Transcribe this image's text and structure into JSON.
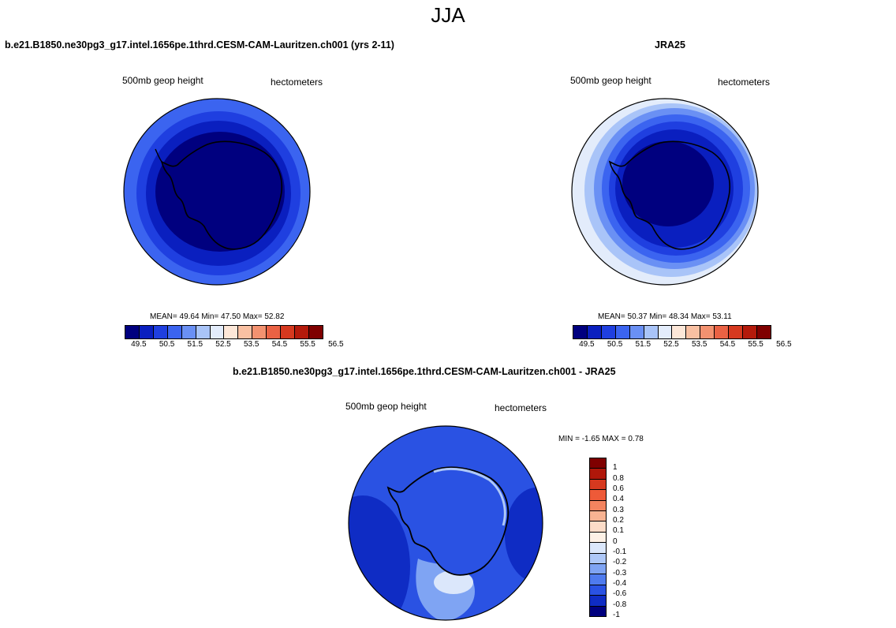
{
  "figure": {
    "title": "JJA"
  },
  "panels": {
    "model": {
      "title": "b.e21.B1850.ne30pg3_g17.intel.1656pe.1thrd.CESM-CAM-Lauritzen.ch001 (yrs 2-11)",
      "variable": "500mb geop height",
      "units": "hectometers",
      "stats": "MEAN=  49.64  Min=  47.50  Max=  52.82",
      "colorbar_labels": [
        "49.5",
        "50.5",
        "51.5",
        "52.5",
        "53.5",
        "54.5",
        "55.5",
        "56.5"
      ]
    },
    "obs": {
      "title": "JRA25",
      "variable": "500mb geop height",
      "units": "hectometers",
      "stats": "MEAN=  50.37  Min=  48.34  Max=  53.11",
      "colorbar_labels": [
        "49.5",
        "50.5",
        "51.5",
        "52.5",
        "53.5",
        "54.5",
        "55.5",
        "56.5"
      ]
    },
    "diff": {
      "title": "b.e21.B1850.ne30pg3_g17.intel.1656pe.1thrd.CESM-CAM-Lauritzen.ch001 - JRA25",
      "variable": "500mb geop height",
      "units": "hectometers",
      "stats": "MIN =  -1.65 MAX =   0.78",
      "colorbar_labels": [
        "1",
        "0.8",
        "0.6",
        "0.4",
        "0.3",
        "0.2",
        "0.1",
        "0",
        "-0.1",
        "-0.2",
        "-0.3",
        "-0.4",
        "-0.6",
        "-0.8",
        "-1"
      ]
    }
  },
  "colors": {
    "abs_scale": [
      "#00007f",
      "#0a1fbf",
      "#1f3fe0",
      "#3b64f0",
      "#6a90f4",
      "#a9c4f8",
      "#e3ecfb",
      "#fde7d8",
      "#f9c0a2",
      "#f39270",
      "#ea6244",
      "#d6391f",
      "#b41a0b",
      "#7f0000"
    ],
    "diff_scale": [
      "#7f0000",
      "#b0170a",
      "#d6391f",
      "#ee5a38",
      "#f4845f",
      "#f8b392",
      "#fcdcc8",
      "#fdf1e6",
      "#dbe7fb",
      "#aec8f8",
      "#7fa4f3",
      "#4f7bee",
      "#2a52e3",
      "#0f2cc4",
      "#00007f"
    ]
  }
}
